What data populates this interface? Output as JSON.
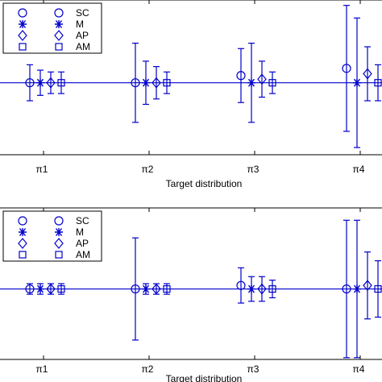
{
  "colors": {
    "series": "#0000cc",
    "axis": "#000000",
    "reference_line": "#0000cc"
  },
  "legend": {
    "placement": "top-left",
    "entries": [
      "SC",
      "M",
      "AP",
      "AM"
    ]
  },
  "chart_data": [
    {
      "type": "errorbar",
      "xlabel": "Target distribution",
      "categories": [
        "π1",
        "π2",
        "π3",
        "π4"
      ],
      "reference_y": 0,
      "ylim": [
        -2,
        2.3
      ],
      "series": [
        {
          "name": "SC",
          "marker": "circle",
          "values": [
            0,
            0,
            0.2,
            0.4
          ],
          "errors": [
            0.5,
            1.1,
            0.75,
            1.75
          ]
        },
        {
          "name": "M",
          "marker": "asterisk",
          "values": [
            0,
            0,
            0,
            0
          ],
          "errors": [
            0.35,
            0.6,
            1.1,
            1.8
          ]
        },
        {
          "name": "AP",
          "marker": "diamond",
          "values": [
            0,
            0,
            0.1,
            0.25
          ],
          "errors": [
            0.3,
            0.45,
            0.5,
            0.75
          ]
        },
        {
          "name": "AM",
          "marker": "square",
          "values": [
            0,
            0,
            0,
            0
          ],
          "errors": [
            0.3,
            0.3,
            0.3,
            0.5
          ]
        }
      ]
    },
    {
      "type": "errorbar",
      "xlabel": "Target distribution",
      "categories": [
        "π1",
        "π2",
        "π3",
        "π4"
      ],
      "reference_y": 0,
      "ylim": [
        -2,
        2.3
      ],
      "series": [
        {
          "name": "SC",
          "marker": "circle",
          "values": [
            0,
            0,
            0.1,
            0
          ],
          "errors": [
            0.15,
            1.45,
            0.5,
            1.95
          ]
        },
        {
          "name": "M",
          "marker": "asterisk",
          "values": [
            0,
            0,
            0,
            0
          ],
          "errors": [
            0.15,
            0.15,
            0.35,
            1.95
          ]
        },
        {
          "name": "AP",
          "marker": "diamond",
          "values": [
            0,
            0,
            0,
            0.1
          ],
          "errors": [
            0.15,
            0.15,
            0.35,
            0.95
          ]
        },
        {
          "name": "AM",
          "marker": "square",
          "values": [
            0,
            0,
            0,
            0
          ],
          "errors": [
            0.15,
            0.15,
            0.25,
            0.8
          ]
        }
      ]
    }
  ]
}
